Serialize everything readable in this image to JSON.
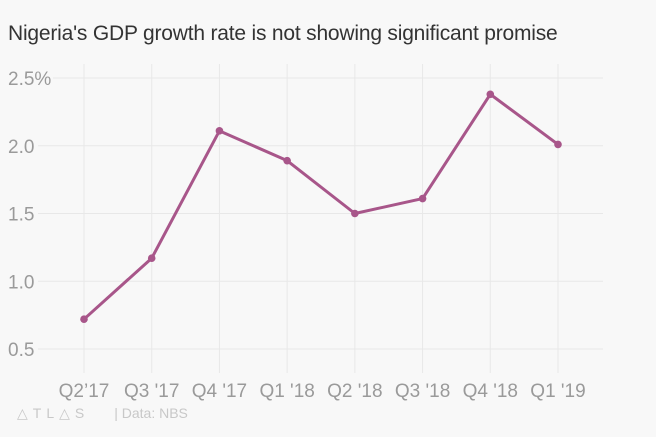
{
  "chart_data": {
    "type": "line",
    "title": "Nigeria's GDP growth rate is not showing significant promise",
    "xlabel": "",
    "ylabel": "",
    "categories": [
      "Q2’17",
      "Q3 '17",
      "Q4 '17",
      "Q1 '18",
      "Q2 '18",
      "Q3 '18",
      "Q4 '18",
      "Q1 '19"
    ],
    "series": [
      {
        "name": "GDP growth rate",
        "color": "#a8568a",
        "values": [
          0.72,
          1.17,
          2.11,
          1.89,
          1.5,
          1.61,
          2.38,
          2.01
        ]
      }
    ],
    "ylim": [
      0.3,
      2.6
    ],
    "yticks": [
      0.5,
      1.0,
      1.5,
      2.0,
      2.5
    ],
    "ytick_labels": [
      "0.5",
      "1.0",
      "1.5",
      "2.0",
      "2.5%"
    ],
    "grid": true,
    "legend": "none"
  },
  "footer": {
    "logo": "△TL△S",
    "source": "| Data: NBS"
  },
  "colors": {
    "line": "#a8568a",
    "grid": "#e8e8e8",
    "axis_text": "#9a9a9a",
    "background": "#f8f8f8"
  }
}
